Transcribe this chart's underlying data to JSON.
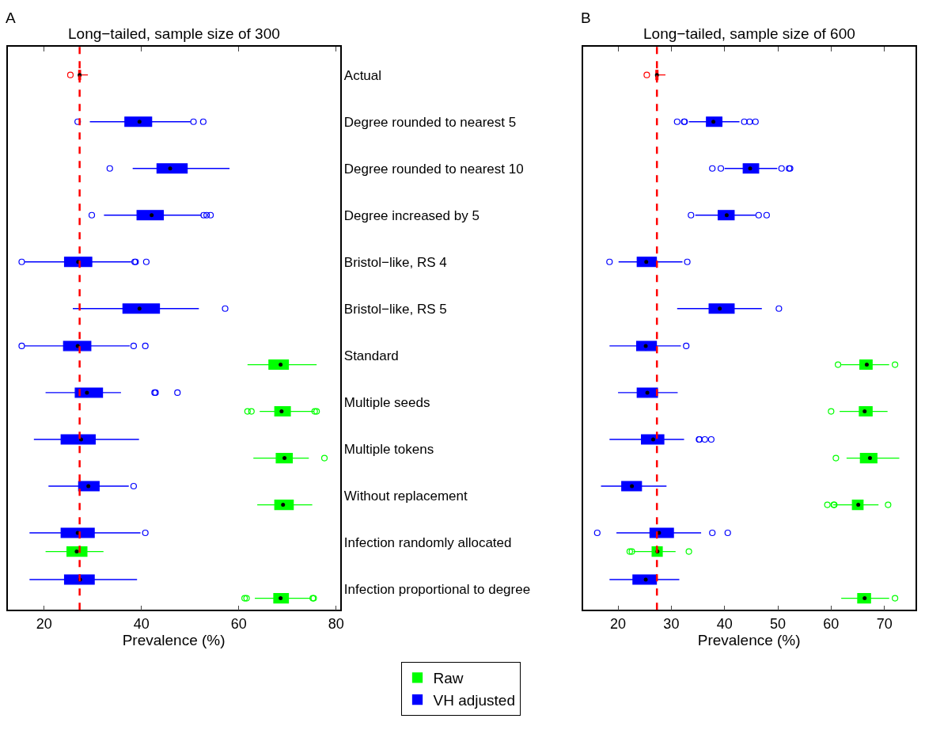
{
  "chart_data": [
    {
      "type": "box",
      "orientation": "horizontal",
      "title": "Long−tailed, sample size of 300",
      "xlabel": "Prevalence (%)",
      "annotations": [
        "A"
      ],
      "legend": "bottom",
      "categories": [
        "Actual",
        "Degree rounded to nearest 5",
        "Degree rounded to nearest 10",
        "Degree increased by 5",
        "Bristol−like, RS 4",
        "Bristol−like, RS 5",
        "Standard",
        "Multiple seeds",
        "Multiple tokens",
        "Without replacement",
        "Infection randomly allocated",
        "Infection proportional to degree"
      ],
      "xlim": [
        12.5,
        80.8
      ],
      "xticks": [
        20,
        40,
        60,
        80
      ],
      "ref_lines": [
        {
          "axis": "x",
          "value": 27.3,
          "color": "#ff0000",
          "line_style": "dashed"
        }
      ],
      "series": [
        {
          "color": "#ff0000",
          "boxes": [
            {
              "low": 27.0,
              "q1": 27.1,
              "median": 27.3,
              "q3": 27.5,
              "high": 29.0,
              "outliers": [
                25.4
              ]
            },
            null,
            null,
            null,
            null,
            null,
            null,
            null,
            null,
            null,
            null,
            null
          ]
        },
        {
          "name": "VH adjusted",
          "color": "#0000ff",
          "boxes": [
            null,
            {
              "low": 29.4,
              "q1": 36.6,
              "median": 39.6,
              "q3": 42.1,
              "high": 50.1,
              "outliers": [
                26.9,
                50.7,
                52.7
              ]
            },
            {
              "low": 38.2,
              "q1": 43.2,
              "median": 45.9,
              "q3": 49.4,
              "high": 58.1,
              "outliers": [
                33.5
              ]
            },
            {
              "low": 32.3,
              "q1": 39.1,
              "median": 42.1,
              "q3": 44.5,
              "high": 52.3,
              "outliers": [
                29.8,
                52.8,
                53.4,
                54.2
              ]
            },
            {
              "low": 16.0,
              "q1": 24.2,
              "median": 27.0,
              "q3": 29.8,
              "high": 37.9,
              "outliers": [
                15.4,
                38.6,
                38.8,
                41.0
              ]
            },
            {
              "low": 25.9,
              "q1": 36.2,
              "median": 39.6,
              "q3": 43.7,
              "high": 51.8,
              "outliers": [
                57.2
              ]
            },
            {
              "low": 16.0,
              "q1": 24.0,
              "median": 26.9,
              "q3": 29.6,
              "high": 37.6,
              "outliers": [
                15.4,
                38.4,
                40.8
              ]
            },
            {
              "low": 20.3,
              "q1": 26.4,
              "median": 28.8,
              "q3": 32.0,
              "high": 35.8,
              "outliers": [
                42.7,
                42.9,
                47.4
              ]
            },
            {
              "low": 17.9,
              "q1": 23.5,
              "median": 27.6,
              "q3": 30.5,
              "high": 39.5
            },
            {
              "low": 20.9,
              "q1": 27.1,
              "median": 29.1,
              "q3": 31.3,
              "high": 37.4,
              "outliers": [
                38.4
              ]
            },
            {
              "low": 17.0,
              "q1": 23.5,
              "median": 26.9,
              "q3": 30.3,
              "high": 39.8,
              "outliers": [
                40.8
              ]
            },
            {
              "low": 17.0,
              "q1": 24.2,
              "median": 27.4,
              "q3": 30.3,
              "high": 39.1
            }
          ]
        },
        {
          "name": "Raw",
          "color": "#00ff00",
          "boxes": [
            null,
            null,
            null,
            null,
            null,
            null,
            {
              "low": 61.8,
              "q1": 66.2,
              "median": 68.6,
              "q3": 70.2,
              "high": 76.0
            },
            {
              "low": 64.3,
              "q1": 67.4,
              "median": 68.8,
              "q3": 70.6,
              "high": 75.5,
              "outliers": [
                61.8,
                62.6,
                75.6,
                76.0
              ]
            },
            {
              "low": 63.0,
              "q1": 67.7,
              "median": 69.4,
              "q3": 71.0,
              "high": 74.4,
              "outliers": [
                77.6
              ]
            },
            {
              "low": 63.8,
              "q1": 67.4,
              "median": 69.1,
              "q3": 71.2,
              "high": 75.1
            },
            {
              "low": 20.3,
              "q1": 24.7,
              "median": 26.7,
              "q3": 28.8,
              "high": 32.2
            },
            {
              "low": 63.3,
              "q1": 67.2,
              "median": 68.6,
              "q3": 70.2,
              "high": 74.9,
              "outliers": [
                61.2,
                61.6,
                75.2,
                75.4
              ]
            }
          ]
        }
      ]
    },
    {
      "type": "box",
      "orientation": "horizontal",
      "title": "Long−tailed, sample size of 600",
      "xlabel": "Prevalence (%)",
      "annotations": [
        "B"
      ],
      "tick_labels": "x",
      "categories": [
        null,
        null,
        null,
        null,
        null,
        null,
        null,
        null,
        null,
        null,
        null,
        null
      ],
      "xlim": [
        13.4,
        75.8
      ],
      "xticks": [
        20,
        30,
        40,
        50,
        60,
        70
      ],
      "ref_lines": [
        {
          "axis": "x",
          "value": 27.3,
          "color": "#ff0000",
          "line_style": "dashed"
        }
      ],
      "series": [
        {
          "color": "#ff0000",
          "boxes": [
            {
              "low": 27.0,
              "q1": 27.1,
              "median": 27.3,
              "q3": 27.5,
              "high": 28.9,
              "outliers": [
                25.4
              ]
            },
            null,
            null,
            null,
            null,
            null,
            null,
            null,
            null,
            null,
            null,
            null
          ]
        },
        {
          "name": "VH adjusted",
          "color": "#0000ff",
          "boxes": [
            null,
            {
              "low": 33.3,
              "q1": 36.6,
              "median": 37.9,
              "q3": 39.5,
              "high": 42.8,
              "outliers": [
                31.1,
                32.4,
                32.5,
                43.7,
                44.7,
                45.8
              ]
            },
            {
              "low": 40.0,
              "q1": 43.5,
              "median": 44.8,
              "q3": 46.4,
              "high": 49.9,
              "outliers": [
                37.7,
                39.3,
                50.7,
                52.1,
                52.3
              ]
            },
            {
              "low": 34.5,
              "q1": 38.8,
              "median": 40.4,
              "q3": 41.8,
              "high": 45.8,
              "outliers": [
                33.7,
                46.4,
                47.9
              ]
            },
            {
              "low": 20.1,
              "q1": 23.6,
              "median": 25.3,
              "q3": 27.2,
              "high": 32.1,
              "outliers": [
                18.4,
                33.0
              ]
            },
            {
              "low": 31.1,
              "q1": 37.1,
              "median": 39.1,
              "q3": 41.8,
              "high": 47.0,
              "outliers": [
                50.2
              ]
            },
            {
              "low": 18.4,
              "q1": 23.5,
              "median": 25.2,
              "q3": 27.2,
              "high": 31.8,
              "outliers": [
                32.8
              ]
            },
            {
              "low": 20.0,
              "q1": 23.6,
              "median": 25.5,
              "q3": 27.4,
              "high": 31.2
            },
            {
              "low": 18.4,
              "q1": 24.4,
              "median": 26.6,
              "q3": 28.6,
              "high": 32.4,
              "outliers": [
                35.2,
                35.3,
                36.3,
                37.5
              ]
            },
            {
              "low": 16.8,
              "q1": 20.7,
              "median": 22.6,
              "q3": 24.4,
              "high": 29.1
            },
            {
              "low": 19.7,
              "q1": 26.0,
              "median": 27.7,
              "q3": 30.4,
              "high": 35.6,
              "outliers": [
                16.1,
                37.7,
                40.6
              ]
            },
            {
              "low": 18.4,
              "q1": 22.8,
              "median": 25.2,
              "q3": 27.2,
              "high": 31.5
            }
          ]
        },
        {
          "name": "Raw",
          "color": "#00ff00",
          "boxes": [
            null,
            null,
            null,
            null,
            null,
            null,
            {
              "low": 61.9,
              "q1": 65.4,
              "median": 66.7,
              "q3": 67.7,
              "high": 70.9,
              "outliers": [
                61.3,
                72.0
              ]
            },
            {
              "low": 61.6,
              "q1": 65.3,
              "median": 66.3,
              "q3": 67.7,
              "high": 70.6,
              "outliers": [
                60.0
              ]
            },
            {
              "low": 62.9,
              "q1": 65.5,
              "median": 67.3,
              "q3": 68.6,
              "high": 72.8,
              "outliers": [
                60.9
              ]
            },
            {
              "low": 60.4,
              "q1": 64.0,
              "median": 65.1,
              "q3": 66.0,
              "high": 68.9,
              "outliers": [
                59.3,
                60.5,
                60.6,
                70.7
              ]
            },
            {
              "low": 22.9,
              "q1": 26.4,
              "median": 27.4,
              "q3": 28.3,
              "high": 30.8,
              "outliers": [
                22.2,
                22.6,
                33.3
              ]
            },
            {
              "low": 61.9,
              "q1": 65.0,
              "median": 66.3,
              "q3": 67.4,
              "high": 70.9,
              "outliers": [
                72.0
              ]
            }
          ]
        }
      ]
    }
  ]
}
